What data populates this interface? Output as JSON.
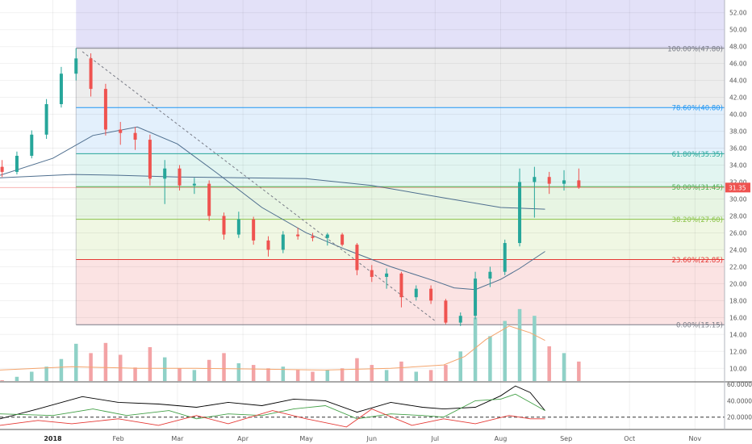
{
  "chart_data": {
    "type": "candlestick",
    "price_axis": {
      "ticks": [
        "52.00",
        "50.00",
        "48.00",
        "46.00",
        "44.00",
        "42.00",
        "40.00",
        "38.00",
        "36.00",
        "34.00",
        "32.00",
        "30.00",
        "28.00",
        "26.00",
        "24.00",
        "22.00",
        "20.00",
        "18.00",
        "16.00",
        "14.00",
        "12.00",
        "10.00"
      ],
      "range": [
        8.5,
        53.5
      ],
      "last_price": "31.35",
      "last_price_color": "#ef5350"
    },
    "time_axis": {
      "labels": [
        "2018",
        "Feb",
        "Mar",
        "Apr",
        "May",
        "Jun",
        "Jul",
        "Aug",
        "Sep",
        "Oct",
        "Nov"
      ],
      "label_dates": [
        "2018-01-01",
        "2018-02-01",
        "2018-03-01",
        "2018-04-01",
        "2018-05-01",
        "2018-06-01",
        "2018-07-01",
        "2018-08-01",
        "2018-09-01",
        "2018-10-01",
        "2018-11-01"
      ],
      "range": [
        "2017-12-07",
        "2018-11-15"
      ]
    },
    "fibonacci": {
      "start": "2018-01-12",
      "end": "2018-11-15",
      "levels": [
        {
          "label": "100.00%(47.80)",
          "price": 47.8,
          "color": "#787b86",
          "band": "#ededed"
        },
        {
          "label": "78.60%(40.80)",
          "price": 40.8,
          "color": "#2196f3",
          "band": "#e3f0fc"
        },
        {
          "label": "61.80%(35.35)",
          "price": 35.35,
          "color": "#26a69a",
          "band": "#e2f5f1"
        },
        {
          "label": "50.00%(31.45)",
          "price": 31.45,
          "color": "#4caf50",
          "band": "#e7f5e3"
        },
        {
          "label": "38.20%(27.60)",
          "price": 27.6,
          "color": "#8bc34a",
          "band": "#f0f7e3"
        },
        {
          "label": "23.60%(22.85)",
          "price": 22.85,
          "color": "#e53935",
          "band": "#fbe3e3"
        },
        {
          "label": "0.00%(15.15)",
          "price": 15.15,
          "color": "#787b86",
          "band": null
        }
      ],
      "above_band_color": "#e3e1f8"
    },
    "trend_line": {
      "from": [
        "2018-01-15",
        47.4
      ],
      "to": [
        "2018-07-01",
        15.6
      ],
      "color": "#787b86"
    },
    "moving_averages": [
      {
        "color": "#4f6f8f",
        "points": [
          [
            "2017-12-07",
            32.8
          ],
          [
            "2018-01-01",
            34.8
          ],
          [
            "2018-01-20",
            37.5
          ],
          [
            "2018-02-10",
            38.5
          ],
          [
            "2018-03-01",
            36.5
          ],
          [
            "2018-03-20",
            33.0
          ],
          [
            "2018-04-10",
            29.0
          ],
          [
            "2018-05-01",
            26.0
          ],
          [
            "2018-05-20",
            24.0
          ],
          [
            "2018-06-10",
            22.0
          ],
          [
            "2018-07-01",
            20.3
          ],
          [
            "2018-07-10",
            19.5
          ],
          [
            "2018-07-20",
            19.3
          ],
          [
            "2018-08-01",
            20.5
          ],
          [
            "2018-08-10",
            21.8
          ],
          [
            "2018-08-22",
            23.8
          ]
        ]
      },
      {
        "color": "#4f6f8f",
        "points": [
          [
            "2017-12-07",
            32.5
          ],
          [
            "2018-01-10",
            32.9
          ],
          [
            "2018-02-01",
            32.8
          ],
          [
            "2018-03-01",
            32.6
          ],
          [
            "2018-04-01",
            32.5
          ],
          [
            "2018-05-01",
            32.4
          ],
          [
            "2018-06-01",
            31.6
          ],
          [
            "2018-07-01",
            30.3
          ],
          [
            "2018-08-01",
            29.0
          ],
          [
            "2018-08-22",
            28.8
          ]
        ]
      }
    ],
    "volume": {
      "avg_color": "#f4a56e",
      "avg_points": [
        [
          "2017-12-07",
          9.8
        ],
        [
          "2018-01-10",
          10.2
        ],
        [
          "2018-02-10",
          10.0
        ],
        [
          "2018-03-10",
          10.0
        ],
        [
          "2018-04-10",
          9.9
        ],
        [
          "2018-05-10",
          9.8
        ],
        [
          "2018-06-10",
          10.0
        ],
        [
          "2018-07-05",
          10.4
        ],
        [
          "2018-07-15",
          11.4
        ],
        [
          "2018-07-25",
          13.4
        ],
        [
          "2018-08-05",
          15.0
        ],
        [
          "2018-08-15",
          14.2
        ],
        [
          "2018-08-22",
          13.3
        ]
      ]
    },
    "oscillator": {
      "ticks": [
        "60.0000",
        "40.0000",
        "20.0000"
      ],
      "range": [
        5,
        62
      ],
      "reference_level": 20,
      "series": [
        {
          "color": "#000000",
          "points": [
            [
              "2017-12-07",
              18
            ],
            [
              "2017-12-25",
              30
            ],
            [
              "2018-01-15",
              45
            ],
            [
              "2018-02-01",
              38
            ],
            [
              "2018-02-20",
              36
            ],
            [
              "2018-03-10",
              32
            ],
            [
              "2018-03-25",
              38
            ],
            [
              "2018-04-10",
              34
            ],
            [
              "2018-04-25",
              42
            ],
            [
              "2018-05-10",
              40
            ],
            [
              "2018-05-25",
              26
            ],
            [
              "2018-06-10",
              38
            ],
            [
              "2018-06-25",
              32
            ],
            [
              "2018-07-05",
              30
            ],
            [
              "2018-07-20",
              32
            ],
            [
              "2018-08-01",
              46
            ],
            [
              "2018-08-08",
              58
            ],
            [
              "2018-08-15",
              50
            ],
            [
              "2018-08-22",
              28
            ]
          ]
        },
        {
          "color": "#43a047",
          "points": [
            [
              "2017-12-07",
              24
            ],
            [
              "2018-01-01",
              22
            ],
            [
              "2018-01-20",
              30
            ],
            [
              "2018-02-05",
              22
            ],
            [
              "2018-02-25",
              28
            ],
            [
              "2018-03-10",
              18
            ],
            [
              "2018-03-25",
              24
            ],
            [
              "2018-04-10",
              22
            ],
            [
              "2018-04-25",
              30
            ],
            [
              "2018-05-10",
              34
            ],
            [
              "2018-05-25",
              18
            ],
            [
              "2018-06-10",
              24
            ],
            [
              "2018-06-25",
              22
            ],
            [
              "2018-07-05",
              20
            ],
            [
              "2018-07-20",
              40
            ],
            [
              "2018-08-01",
              42
            ],
            [
              "2018-08-08",
              48
            ],
            [
              "2018-08-15",
              38
            ],
            [
              "2018-08-22",
              28
            ]
          ]
        },
        {
          "color": "#e53935",
          "points": [
            [
              "2017-12-07",
              10
            ],
            [
              "2017-12-25",
              16
            ],
            [
              "2018-01-10",
              12
            ],
            [
              "2018-02-01",
              18
            ],
            [
              "2018-02-20",
              10
            ],
            [
              "2018-03-10",
              22
            ],
            [
              "2018-03-25",
              12
            ],
            [
              "2018-04-15",
              28
            ],
            [
              "2018-05-01",
              18
            ],
            [
              "2018-05-20",
              8
            ],
            [
              "2018-06-01",
              30
            ],
            [
              "2018-06-20",
              10
            ],
            [
              "2018-07-05",
              18
            ],
            [
              "2018-07-20",
              12
            ],
            [
              "2018-08-05",
              22
            ],
            [
              "2018-08-15",
              18
            ],
            [
              "2018-08-22",
              18
            ]
          ]
        }
      ]
    },
    "weekly_ohlcv": [
      [
        "2017-12-08",
        33.8,
        34.6,
        32.6,
        33.2,
        8.6
      ],
      [
        "2017-12-15",
        33.2,
        35.6,
        32.9,
        35.1,
        9.0
      ],
      [
        "2017-12-22",
        35.1,
        38.1,
        34.8,
        37.6,
        9.6
      ],
      [
        "2017-12-29",
        37.6,
        41.8,
        37.1,
        41.2,
        10.2
      ],
      [
        "2018-01-05",
        41.2,
        45.6,
        40.8,
        44.8,
        11.1
      ],
      [
        "2018-01-12",
        44.8,
        47.8,
        44.0,
        46.6,
        12.9
      ],
      [
        "2018-01-19",
        46.6,
        47.2,
        42.1,
        43.0,
        11.8
      ],
      [
        "2018-01-26",
        43.0,
        43.6,
        37.5,
        38.2,
        13.0
      ],
      [
        "2018-02-02",
        38.2,
        39.1,
        36.4,
        37.8,
        11.6
      ],
      [
        "2018-02-09",
        37.8,
        38.5,
        35.8,
        37.0,
        10.1
      ],
      [
        "2018-02-16",
        37.0,
        37.6,
        31.6,
        32.4,
        12.5
      ],
      [
        "2018-02-23",
        32.4,
        34.6,
        29.4,
        33.6,
        11.3
      ],
      [
        "2018-03-02",
        33.6,
        34.0,
        31.0,
        31.6,
        10.0
      ],
      [
        "2018-03-09",
        31.6,
        32.5,
        30.6,
        31.8,
        9.8
      ],
      [
        "2018-03-16",
        31.8,
        32.2,
        27.4,
        28.0,
        11.0
      ],
      [
        "2018-03-23",
        28.0,
        28.4,
        25.2,
        25.8,
        11.8
      ],
      [
        "2018-03-30",
        25.8,
        28.5,
        25.4,
        27.6,
        10.6
      ],
      [
        "2018-04-06",
        27.6,
        27.9,
        24.6,
        25.1,
        10.4
      ],
      [
        "2018-04-13",
        25.1,
        25.6,
        23.2,
        24.0,
        10.0
      ],
      [
        "2018-04-20",
        24.0,
        26.2,
        23.6,
        25.8,
        10.2
      ],
      [
        "2018-04-27",
        25.8,
        26.6,
        25.2,
        25.6,
        9.8
      ],
      [
        "2018-05-04",
        25.6,
        26.0,
        25.0,
        25.4,
        9.6
      ],
      [
        "2018-05-11",
        25.4,
        26.0,
        24.5,
        25.8,
        9.8
      ],
      [
        "2018-05-18",
        25.8,
        26.0,
        24.4,
        24.6,
        10.0
      ],
      [
        "2018-05-25",
        24.6,
        24.8,
        21.0,
        21.6,
        11.2
      ],
      [
        "2018-06-01",
        21.6,
        22.2,
        20.2,
        20.8,
        10.4
      ],
      [
        "2018-06-08",
        20.8,
        21.8,
        19.4,
        21.2,
        9.8
      ],
      [
        "2018-06-15",
        21.2,
        21.4,
        17.2,
        18.4,
        10.8
      ],
      [
        "2018-06-22",
        18.4,
        19.8,
        18.0,
        19.4,
        9.6
      ],
      [
        "2018-06-29",
        19.4,
        19.8,
        17.6,
        18.0,
        9.8
      ],
      [
        "2018-07-06",
        18.0,
        18.2,
        15.2,
        15.4,
        10.4
      ],
      [
        "2018-07-13",
        15.4,
        16.6,
        15.0,
        16.2,
        12.0
      ],
      [
        "2018-07-20",
        16.2,
        21.4,
        15.8,
        20.6,
        16.0
      ],
      [
        "2018-07-27",
        20.6,
        22.0,
        19.6,
        21.4,
        13.8
      ],
      [
        "2018-08-03",
        21.4,
        25.2,
        21.0,
        24.8,
        15.6
      ],
      [
        "2018-08-10",
        24.8,
        33.6,
        24.4,
        32.0,
        17.0
      ],
      [
        "2018-08-17",
        32.0,
        33.8,
        27.8,
        32.6,
        16.2
      ],
      [
        "2018-08-24",
        32.6,
        33.2,
        30.6,
        31.8,
        12.6
      ],
      [
        "2018-08-31",
        31.8,
        33.4,
        31.0,
        32.2,
        11.8
      ],
      [
        "2018-09-07",
        32.2,
        33.6,
        31.2,
        31.35,
        10.8
      ]
    ]
  }
}
